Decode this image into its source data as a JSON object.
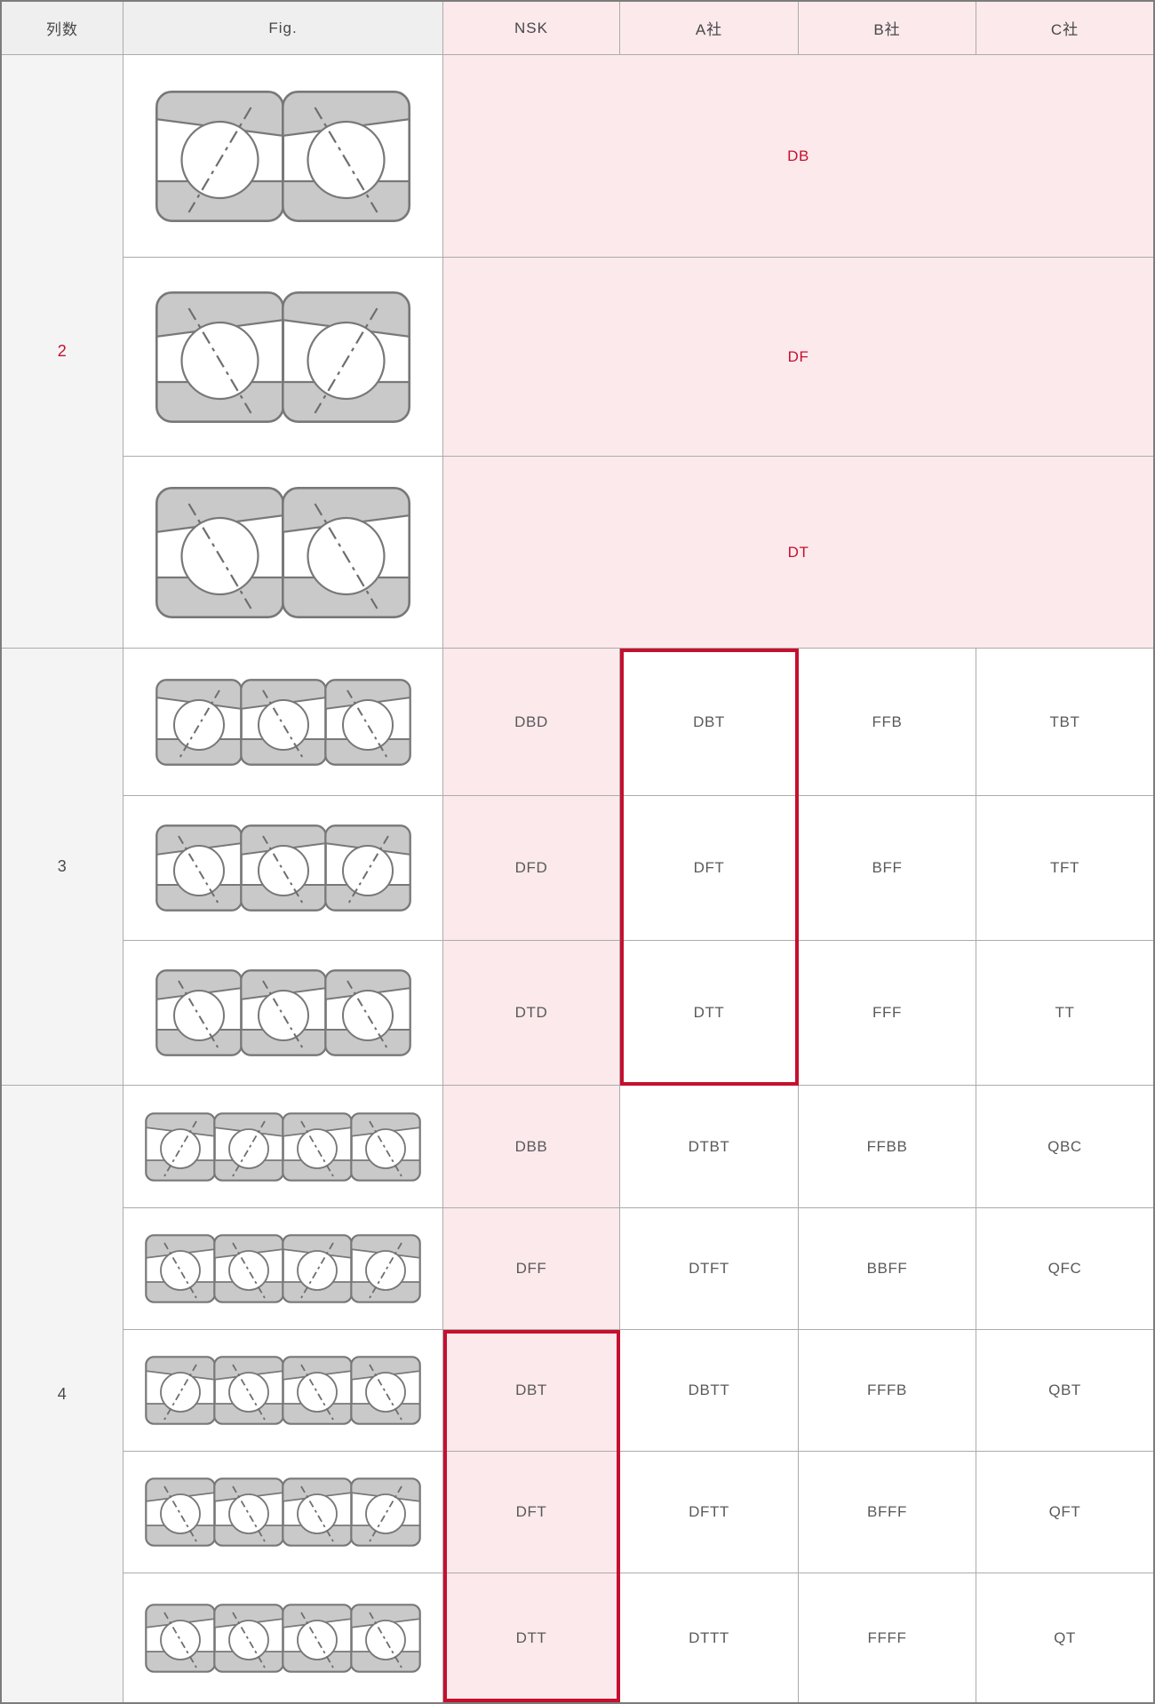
{
  "header": {
    "columns": [
      "列数",
      "Fig.",
      "NSK",
      "A社",
      "B社",
      "C社"
    ]
  },
  "sections": [
    {
      "count_label": "2",
      "count_red": true,
      "rows": [
        {
          "fig": [
            "F",
            "B"
          ],
          "span_code": "DB"
        },
        {
          "fig": [
            "B",
            "F"
          ],
          "span_code": "DF"
        },
        {
          "fig": [
            "B",
            "B"
          ],
          "span_code": "DT"
        }
      ]
    },
    {
      "count_label": "3",
      "count_red": false,
      "rows": [
        {
          "fig": [
            "F",
            "B",
            "B"
          ],
          "codes": [
            "DBD",
            "DBT",
            "FFB",
            "TBT"
          ]
        },
        {
          "fig": [
            "B",
            "B",
            "F"
          ],
          "codes": [
            "DFD",
            "DFT",
            "BFF",
            "TFT"
          ]
        },
        {
          "fig": [
            "B",
            "B",
            "B"
          ],
          "codes": [
            "DTD",
            "DTT",
            "FFF",
            "TT"
          ]
        }
      ]
    },
    {
      "count_label": "4",
      "count_red": false,
      "rows": [
        {
          "fig": [
            "F",
            "F",
            "B",
            "B"
          ],
          "codes": [
            "DBB",
            "DTBT",
            "FFBB",
            "QBC"
          ]
        },
        {
          "fig": [
            "B",
            "B",
            "F",
            "F"
          ],
          "codes": [
            "DFF",
            "DTFT",
            "BBFF",
            "QFC"
          ]
        },
        {
          "fig": [
            "F",
            "B",
            "B",
            "B"
          ],
          "codes": [
            "DBT",
            "DBTT",
            "FFFB",
            "QBT"
          ]
        },
        {
          "fig": [
            "B",
            "B",
            "B",
            "F"
          ],
          "codes": [
            "DFT",
            "DFTT",
            "BFFF",
            "QFT"
          ]
        },
        {
          "fig": [
            "B",
            "B",
            "B",
            "B"
          ],
          "codes": [
            "DTT",
            "DTTT",
            "FFFF",
            "QT"
          ]
        }
      ]
    }
  ],
  "highlights": [
    {
      "label": "a-company-triplex-column",
      "col": 4,
      "row_start": 5,
      "row_span": 3
    },
    {
      "label": "nsk-quad-tandem-column",
      "col": 3,
      "row_start": 10,
      "row_span": 3
    }
  ],
  "colors": {
    "accent": "#c5102e",
    "pink": "#fbe9ec",
    "header_gray": "#efefef",
    "count_col_bg": "#f4f4f4",
    "cell_text": "#595959",
    "grid_line": "#ababab",
    "outer_border": "#7c7c7c",
    "figure_band": "#c9c9c9",
    "figure_stroke": "#787878"
  },
  "figure_legend": {
    "F": "contact-line-forward-slash",
    "B": "contact-line-back-slash"
  }
}
